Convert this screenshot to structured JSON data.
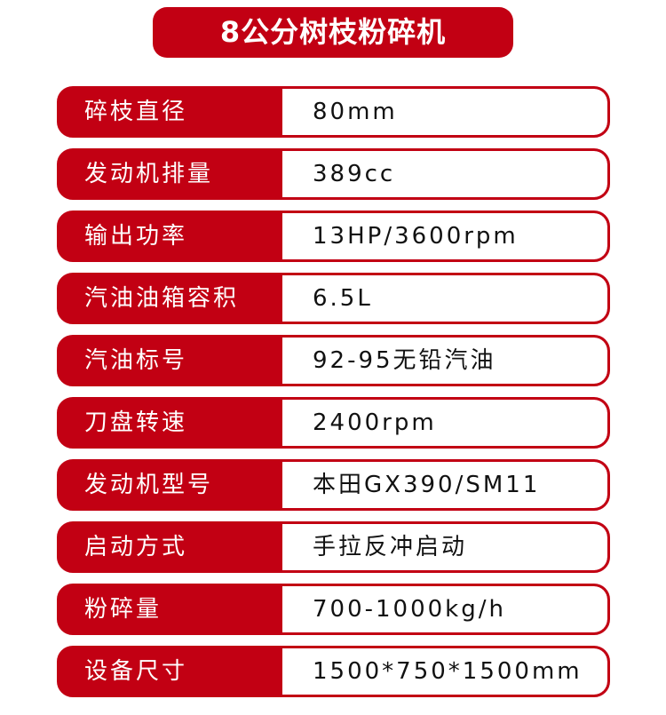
{
  "title": "8公分树枝粉碎机",
  "specs": [
    {
      "label": "碎枝直径",
      "value": "80mm"
    },
    {
      "label": "发动机排量",
      "value": "389cc"
    },
    {
      "label": "输出功率",
      "value": "13HP/3600rpm"
    },
    {
      "label": "汽油油箱容积",
      "value": "6.5L"
    },
    {
      "label": "汽油标号",
      "value": "92-95无铅汽油"
    },
    {
      "label": "刀盘转速",
      "value": "2400rpm"
    },
    {
      "label": "发动机型号",
      "value": "本田GX390/SM11"
    },
    {
      "label": "启动方式",
      "value": "手拉反冲启动"
    },
    {
      "label": "粉碎量",
      "value": "700-1000kg/h"
    },
    {
      "label": "设备尺寸",
      "value": "1500*750*1500mm"
    }
  ],
  "accent_color": "#c20013"
}
